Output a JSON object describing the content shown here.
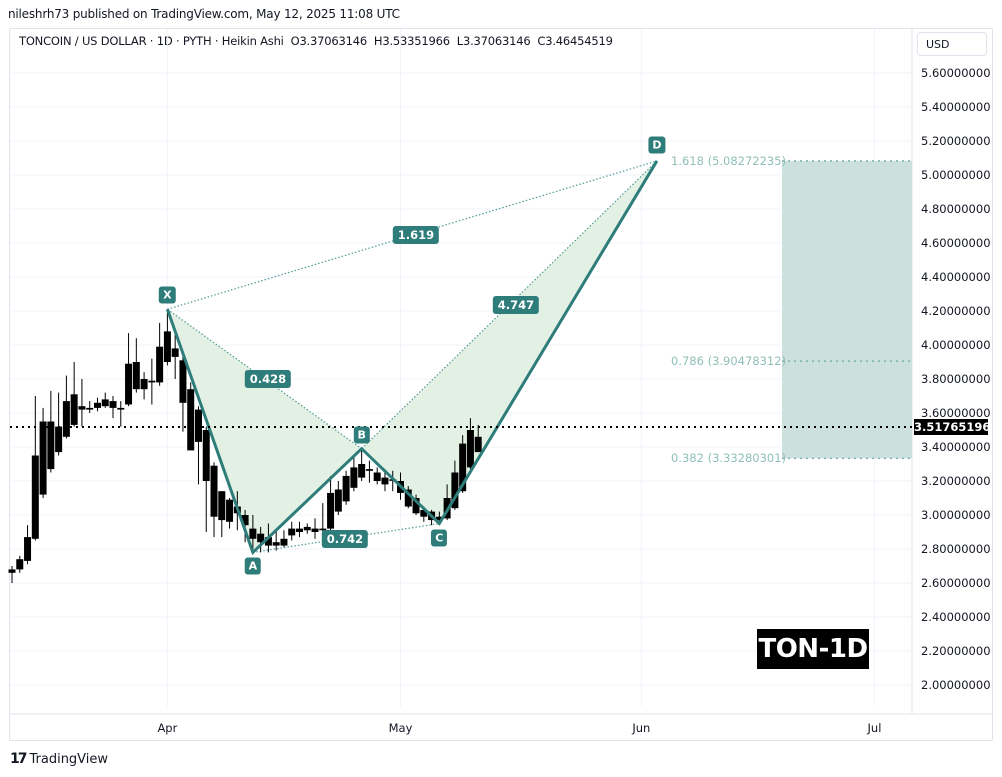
{
  "header": {
    "published": "nileshrh73 published on TradingView.com, May 12, 2025 11:08 UTC"
  },
  "legend": {
    "symbol": "TONCOIN / US DOLLAR · 1D · PYTH · Heikin Ashi",
    "open": "O3.37063146",
    "high": "H3.53351966",
    "low": "L3.37063146",
    "close": "C3.46454519"
  },
  "currency_button": "USD",
  "current_price": "3.51765196",
  "badge": "TON-1D",
  "footer": {
    "logo": "17",
    "brand": "TradingView"
  },
  "pattern": {
    "points": {
      "X": "X",
      "A": "A",
      "B": "B",
      "C": "C",
      "D": "D"
    },
    "ratios": {
      "xb": "0.428",
      "ac": "0.742",
      "bd": "4.747",
      "xd": "1.619"
    },
    "fib_levels": [
      {
        "label": "1.618 (5.08272235)",
        "price": 5.08272235
      },
      {
        "label": "0.786 (3.90478312)",
        "price": 3.90478312
      },
      {
        "label": "0.382 (3.33280301)",
        "price": 3.33280301
      }
    ]
  },
  "colors": {
    "pattern_line": "#2e7d7a",
    "pattern_fill": "#dff0e0",
    "target_zone": "#cce0dd",
    "label_bg": "#2e7d7a",
    "fib_text": "#8fbfb8",
    "candle": "#000000"
  },
  "chart_data": {
    "type": "candlestick",
    "title": "TONCOIN / US DOLLAR · 1D · PYTH · Heikin Ashi",
    "ylabel": "USD",
    "ylim": [
      1.9,
      5.7
    ],
    "y_ticks": [
      "5.60000000",
      "5.40000000",
      "5.20000000",
      "5.00000000",
      "4.80000000",
      "4.60000000",
      "4.40000000",
      "4.20000000",
      "4.00000000",
      "3.80000000",
      "3.60000000",
      "3.40000000",
      "3.20000000",
      "3.00000000",
      "2.80000000",
      "2.60000000",
      "2.40000000",
      "2.20000000",
      "2.00000000"
    ],
    "x_ticks": [
      "Apr",
      "May",
      "Jun",
      "Jul"
    ],
    "last_price": 3.51765196,
    "ohlc_last": {
      "open": 3.37063146,
      "high": 3.53351966,
      "low": 3.37063146,
      "close": 3.46454519
    },
    "harmonic_pattern": {
      "X": {
        "date": "2025-04-01",
        "price": 4.21
      },
      "A": {
        "date": "2025-04-12",
        "price": 2.78
      },
      "B": {
        "date": "2025-04-26",
        "price": 3.39
      },
      "C": {
        "date": "2025-05-06",
        "price": 2.95
      },
      "D": {
        "date": "2025-06-03",
        "price": 5.08272235
      },
      "ratios": {
        "XB": 0.428,
        "AC": 0.742,
        "BD": 4.747,
        "XD": 1.619
      }
    },
    "fib_targets": [
      5.08272235,
      3.90478312,
      3.33280301
    ],
    "candles": [
      {
        "d": "03-12",
        "o": 2.66,
        "h": 2.7,
        "l": 2.6,
        "c": 2.68
      },
      {
        "d": "03-13",
        "o": 2.68,
        "h": 2.76,
        "l": 2.66,
        "c": 2.74
      },
      {
        "d": "03-14",
        "o": 2.73,
        "h": 2.94,
        "l": 2.71,
        "c": 2.87
      },
      {
        "d": "03-15",
        "o": 2.86,
        "h": 3.7,
        "l": 2.85,
        "c": 3.35
      },
      {
        "d": "03-16",
        "o": 3.12,
        "h": 3.63,
        "l": 3.1,
        "c": 3.55
      },
      {
        "d": "03-17",
        "o": 3.27,
        "h": 3.73,
        "l": 3.25,
        "c": 3.55
      },
      {
        "d": "03-18",
        "o": 3.37,
        "h": 3.72,
        "l": 3.35,
        "c": 3.52
      },
      {
        "d": "03-19",
        "o": 3.46,
        "h": 3.82,
        "l": 3.45,
        "c": 3.67
      },
      {
        "d": "03-20",
        "o": 3.53,
        "h": 3.9,
        "l": 3.52,
        "c": 3.71
      },
      {
        "d": "03-21",
        "o": 3.62,
        "h": 3.8,
        "l": 3.52,
        "c": 3.64
      },
      {
        "d": "03-22",
        "o": 3.62,
        "h": 3.67,
        "l": 3.6,
        "c": 3.63
      },
      {
        "d": "03-23",
        "o": 3.63,
        "h": 3.69,
        "l": 3.61,
        "c": 3.66
      },
      {
        "d": "03-24",
        "o": 3.64,
        "h": 3.72,
        "l": 3.63,
        "c": 3.68
      },
      {
        "d": "03-25",
        "o": 3.67,
        "h": 3.7,
        "l": 3.57,
        "c": 3.63
      },
      {
        "d": "03-26",
        "o": 3.62,
        "h": 3.67,
        "l": 3.52,
        "c": 3.63
      },
      {
        "d": "03-27",
        "o": 3.65,
        "h": 4.07,
        "l": 3.64,
        "c": 3.89
      },
      {
        "d": "03-28",
        "o": 3.74,
        "h": 4.04,
        "l": 3.72,
        "c": 3.9
      },
      {
        "d": "03-29",
        "o": 3.8,
        "h": 3.84,
        "l": 3.68,
        "c": 3.74
      },
      {
        "d": "03-30",
        "o": 3.78,
        "h": 3.92,
        "l": 3.65,
        "c": 3.79
      },
      {
        "d": "03-31",
        "o": 3.78,
        "h": 4.13,
        "l": 3.76,
        "c": 3.99
      },
      {
        "d": "04-01",
        "o": 3.9,
        "h": 4.21,
        "l": 3.88,
        "c": 4.08
      },
      {
        "d": "04-02",
        "o": 3.98,
        "h": 4.09,
        "l": 3.8,
        "c": 3.93
      },
      {
        "d": "04-03",
        "o": 3.91,
        "h": 3.93,
        "l": 3.49,
        "c": 3.66
      },
      {
        "d": "04-04",
        "o": 3.74,
        "h": 3.78,
        "l": 3.39,
        "c": 3.38
      },
      {
        "d": "04-05",
        "o": 3.62,
        "h": 3.64,
        "l": 3.18,
        "c": 3.43
      },
      {
        "d": "04-06",
        "o": 3.5,
        "h": 3.52,
        "l": 2.9,
        "c": 3.2
      },
      {
        "d": "04-07",
        "o": 3.29,
        "h": 3.31,
        "l": 2.87,
        "c": 2.99
      },
      {
        "d": "04-08",
        "o": 3.14,
        "h": 3.14,
        "l": 2.87,
        "c": 2.97
      },
      {
        "d": "04-09",
        "o": 3.09,
        "h": 3.1,
        "l": 2.92,
        "c": 2.96
      },
      {
        "d": "04-10",
        "o": 3.05,
        "h": 3.14,
        "l": 2.91,
        "c": 3.01
      },
      {
        "d": "04-11",
        "o": 3.0,
        "h": 3.03,
        "l": 2.84,
        "c": 2.94
      },
      {
        "d": "04-12",
        "o": 2.92,
        "h": 3.0,
        "l": 2.78,
        "c": 2.86
      },
      {
        "d": "04-13",
        "o": 2.89,
        "h": 2.93,
        "l": 2.78,
        "c": 2.84
      },
      {
        "d": "04-14",
        "o": 2.87,
        "h": 2.95,
        "l": 2.78,
        "c": 2.82
      },
      {
        "d": "04-15",
        "o": 2.84,
        "h": 2.9,
        "l": 2.79,
        "c": 2.82
      },
      {
        "d": "04-16",
        "o": 2.82,
        "h": 2.91,
        "l": 2.81,
        "c": 2.86
      },
      {
        "d": "04-17",
        "o": 2.88,
        "h": 2.96,
        "l": 2.85,
        "c": 2.92
      },
      {
        "d": "04-18",
        "o": 2.9,
        "h": 2.96,
        "l": 2.87,
        "c": 2.92
      },
      {
        "d": "04-19",
        "o": 2.91,
        "h": 2.95,
        "l": 2.89,
        "c": 2.93
      },
      {
        "d": "04-20",
        "o": 2.92,
        "h": 2.98,
        "l": 2.86,
        "c": 2.9
      },
      {
        "d": "04-21",
        "o": 2.91,
        "h": 3.07,
        "l": 2.83,
        "c": 2.92
      },
      {
        "d": "04-22",
        "o": 2.92,
        "h": 3.23,
        "l": 2.9,
        "c": 3.13
      },
      {
        "d": "04-23",
        "o": 3.02,
        "h": 3.2,
        "l": 3.0,
        "c": 3.15
      },
      {
        "d": "04-24",
        "o": 3.08,
        "h": 3.26,
        "l": 3.06,
        "c": 3.23
      },
      {
        "d": "04-25",
        "o": 3.16,
        "h": 3.34,
        "l": 3.14,
        "c": 3.28
      },
      {
        "d": "04-26",
        "o": 3.22,
        "h": 3.39,
        "l": 3.2,
        "c": 3.3
      },
      {
        "d": "04-27",
        "o": 3.26,
        "h": 3.32,
        "l": 3.19,
        "c": 3.27
      },
      {
        "d": "04-28",
        "o": 3.25,
        "h": 3.28,
        "l": 3.18,
        "c": 3.2
      },
      {
        "d": "04-29",
        "o": 3.22,
        "h": 3.27,
        "l": 3.14,
        "c": 3.18
      },
      {
        "d": "04-30",
        "o": 3.21,
        "h": 3.26,
        "l": 3.14,
        "c": 3.21
      },
      {
        "d": "05-01",
        "o": 3.2,
        "h": 3.25,
        "l": 3.09,
        "c": 3.13
      },
      {
        "d": "05-02",
        "o": 3.15,
        "h": 3.17,
        "l": 3.04,
        "c": 3.05
      },
      {
        "d": "05-03",
        "o": 3.1,
        "h": 3.12,
        "l": 3.0,
        "c": 3.01
      },
      {
        "d": "05-04",
        "o": 3.03,
        "h": 3.05,
        "l": 2.96,
        "c": 2.99
      },
      {
        "d": "05-05",
        "o": 3.02,
        "h": 3.03,
        "l": 2.94,
        "c": 2.97
      },
      {
        "d": "05-06",
        "o": 2.97,
        "h": 3.02,
        "l": 2.95,
        "c": 2.99
      },
      {
        "d": "05-07",
        "o": 2.98,
        "h": 3.18,
        "l": 2.97,
        "c": 3.1
      },
      {
        "d": "05-08",
        "o": 3.04,
        "h": 3.32,
        "l": 3.03,
        "c": 3.25
      },
      {
        "d": "05-09",
        "o": 3.14,
        "h": 3.47,
        "l": 3.13,
        "c": 3.42
      },
      {
        "d": "05-10",
        "o": 3.28,
        "h": 3.57,
        "l": 3.27,
        "c": 3.5
      },
      {
        "d": "05-11",
        "o": 3.37,
        "h": 3.53,
        "l": 3.37,
        "c": 3.46
      }
    ]
  }
}
